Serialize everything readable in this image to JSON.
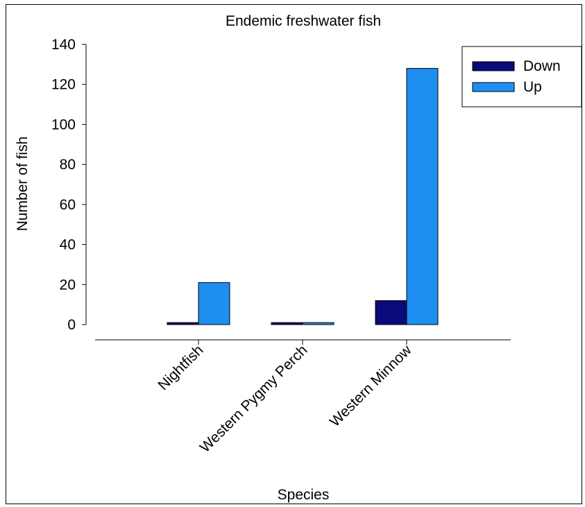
{
  "chart_data": {
    "type": "bar",
    "title": "Endemic freshwater fish",
    "xlabel": "Species",
    "ylabel": "Number of fish",
    "categories": [
      "Nightfish",
      "Western Pygmy Perch",
      "Western Minnow"
    ],
    "series": [
      {
        "name": "Down",
        "values": [
          1,
          1,
          12
        ],
        "color": "#0a0a7a"
      },
      {
        "name": "Up",
        "values": [
          21,
          1,
          128
        ],
        "color": "#1e8ff0"
      }
    ],
    "ylim": [
      0,
      140
    ],
    "yticks": [
      0,
      20,
      40,
      60,
      80,
      100,
      120,
      140
    ],
    "grid": false,
    "legend_position": "top-right"
  }
}
